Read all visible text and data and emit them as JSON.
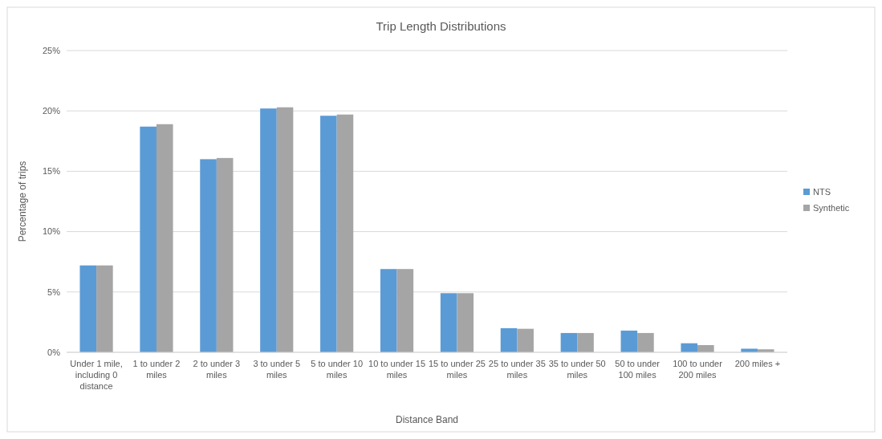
{
  "chart_data": {
    "type": "bar",
    "title": "Trip Length Distributions",
    "xlabel": "Distance Band",
    "ylabel": "Percentage of trips",
    "categories": [
      "Under 1 mile, including 0 distance",
      "1 to under 2 miles",
      "2 to under 3 miles",
      "3 to under 5 miles",
      "5 to under 10 miles",
      "10 to under 15 miles",
      "15 to under 25 miles",
      "25 to under 35 miles",
      "35 to under 50 miles",
      "50 to under 100 miles",
      "100 to under 200 miles",
      "200 miles +"
    ],
    "series": [
      {
        "name": "NTS",
        "color": "#5b9bd5",
        "values": [
          7.2,
          18.7,
          16.0,
          20.2,
          19.6,
          6.9,
          4.9,
          2.0,
          1.6,
          1.8,
          0.75,
          0.3
        ]
      },
      {
        "name": "Synthetic",
        "color": "#a5a5a5",
        "values": [
          7.2,
          18.9,
          16.1,
          20.3,
          19.7,
          6.9,
          4.9,
          1.95,
          1.6,
          1.6,
          0.6,
          0.25
        ]
      }
    ],
    "ylim": [
      0,
      25
    ],
    "yticks": [
      {
        "value": 0,
        "label": "0%"
      },
      {
        "value": 5,
        "label": "5%"
      },
      {
        "value": 10,
        "label": "10%"
      },
      {
        "value": 15,
        "label": "15%"
      },
      {
        "value": 20,
        "label": "20%"
      },
      {
        "value": 25,
        "label": "25%"
      }
    ],
    "grid": "y",
    "legend": "right"
  }
}
